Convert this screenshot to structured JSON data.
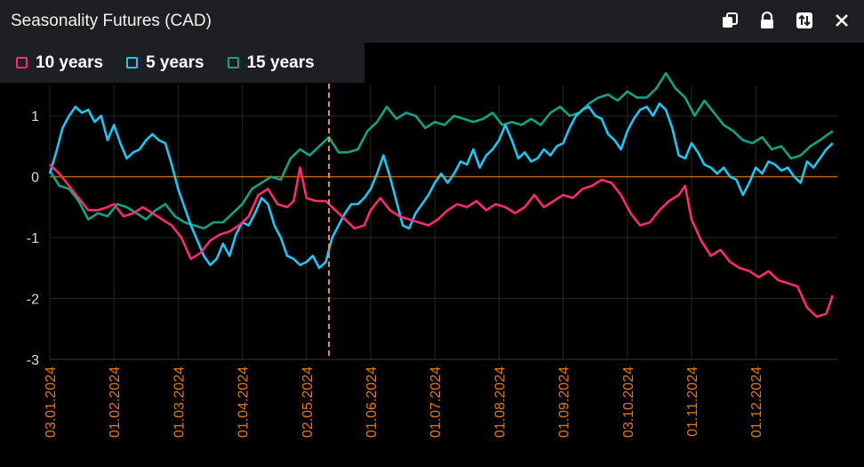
{
  "window": {
    "title": "Seasonality Futures (CAD)"
  },
  "icons": [
    "duplicate-icon",
    "lock-icon",
    "swap-icon",
    "close-icon"
  ],
  "colors": {
    "ten": "#ff2d6f",
    "five": "#1fc7f5",
    "fifteen": "#13a387",
    "zero": "#b8650a",
    "vline": "#f7931a",
    "xlabels": "#e07b12"
  },
  "chart_data": {
    "type": "line",
    "grid": true,
    "ylim": [
      -3,
      1.5
    ],
    "yticks": [
      1,
      0,
      -1,
      -2,
      -3
    ],
    "ytick_labels": [
      "1",
      "0",
      "-1",
      "-2",
      "-3"
    ],
    "x_ticks": [
      "03.01.2024",
      "01.02.2024",
      "01.03.2024",
      "01.04.2024",
      "02.05.2024",
      "01.06.2024",
      "01.07.2024",
      "01.08.2024",
      "01.09.2024",
      "03.10.2024",
      "01.11.2024",
      "01.12.2024"
    ],
    "x_tick_pos": [
      0,
      1,
      2,
      3,
      4,
      5,
      6,
      7,
      8,
      9,
      10,
      11
    ],
    "marker_x": 4.35,
    "series": [
      {
        "name": "10 years",
        "key": "ten",
        "points": [
          [
            0,
            0.2
          ],
          [
            0.15,
            0.05
          ],
          [
            0.3,
            -0.15
          ],
          [
            0.45,
            -0.35
          ],
          [
            0.6,
            -0.55
          ],
          [
            0.75,
            -0.55
          ],
          [
            0.9,
            -0.5
          ],
          [
            1.0,
            -0.45
          ],
          [
            1.15,
            -0.65
          ],
          [
            1.3,
            -0.6
          ],
          [
            1.45,
            -0.5
          ],
          [
            1.6,
            -0.6
          ],
          [
            1.75,
            -0.7
          ],
          [
            1.9,
            -0.8
          ],
          [
            2.05,
            -1.0
          ],
          [
            2.2,
            -1.35
          ],
          [
            2.35,
            -1.25
          ],
          [
            2.5,
            -1.05
          ],
          [
            2.65,
            -0.95
          ],
          [
            2.8,
            -0.9
          ],
          [
            2.95,
            -0.8
          ],
          [
            3.1,
            -0.65
          ],
          [
            3.25,
            -0.3
          ],
          [
            3.4,
            -0.2
          ],
          [
            3.55,
            -0.45
          ],
          [
            3.7,
            -0.5
          ],
          [
            3.8,
            -0.4
          ],
          [
            3.9,
            0.15
          ],
          [
            4.0,
            -0.35
          ],
          [
            4.15,
            -0.4
          ],
          [
            4.3,
            -0.4
          ],
          [
            4.45,
            -0.55
          ],
          [
            4.6,
            -0.7
          ],
          [
            4.75,
            -0.85
          ],
          [
            4.9,
            -0.8
          ],
          [
            5.0,
            -0.55
          ],
          [
            5.15,
            -0.35
          ],
          [
            5.3,
            -0.55
          ],
          [
            5.45,
            -0.65
          ],
          [
            5.6,
            -0.7
          ],
          [
            5.75,
            -0.75
          ],
          [
            5.9,
            -0.8
          ],
          [
            6.05,
            -0.7
          ],
          [
            6.2,
            -0.55
          ],
          [
            6.35,
            -0.45
          ],
          [
            6.5,
            -0.5
          ],
          [
            6.65,
            -0.4
          ],
          [
            6.8,
            -0.55
          ],
          [
            6.95,
            -0.45
          ],
          [
            7.1,
            -0.5
          ],
          [
            7.25,
            -0.6
          ],
          [
            7.4,
            -0.5
          ],
          [
            7.55,
            -0.3
          ],
          [
            7.7,
            -0.5
          ],
          [
            7.85,
            -0.4
          ],
          [
            8.0,
            -0.3
          ],
          [
            8.15,
            -0.35
          ],
          [
            8.3,
            -0.2
          ],
          [
            8.45,
            -0.15
          ],
          [
            8.6,
            -0.05
          ],
          [
            8.75,
            -0.1
          ],
          [
            8.9,
            -0.3
          ],
          [
            9.05,
            -0.6
          ],
          [
            9.2,
            -0.8
          ],
          [
            9.35,
            -0.75
          ],
          [
            9.5,
            -0.55
          ],
          [
            9.65,
            -0.4
          ],
          [
            9.8,
            -0.3
          ],
          [
            9.9,
            -0.15
          ],
          [
            10.0,
            -0.7
          ],
          [
            10.15,
            -1.05
          ],
          [
            10.3,
            -1.3
          ],
          [
            10.45,
            -1.2
          ],
          [
            10.6,
            -1.4
          ],
          [
            10.75,
            -1.5
          ],
          [
            10.9,
            -1.55
          ],
          [
            11.05,
            -1.65
          ],
          [
            11.2,
            -1.55
          ],
          [
            11.35,
            -1.7
          ],
          [
            11.5,
            -1.75
          ],
          [
            11.65,
            -1.8
          ],
          [
            11.8,
            -2.15
          ],
          [
            11.95,
            -2.3
          ],
          [
            12.1,
            -2.25
          ],
          [
            12.2,
            -1.95
          ]
        ]
      },
      {
        "name": "5 years",
        "key": "five",
        "points": [
          [
            0,
            0.05
          ],
          [
            0.1,
            0.4
          ],
          [
            0.2,
            0.8
          ],
          [
            0.3,
            1.0
          ],
          [
            0.4,
            1.15
          ],
          [
            0.5,
            1.05
          ],
          [
            0.6,
            1.1
          ],
          [
            0.7,
            0.9
          ],
          [
            0.8,
            1.0
          ],
          [
            0.9,
            0.6
          ],
          [
            1.0,
            0.85
          ],
          [
            1.1,
            0.55
          ],
          [
            1.2,
            0.3
          ],
          [
            1.3,
            0.4
          ],
          [
            1.4,
            0.45
          ],
          [
            1.5,
            0.6
          ],
          [
            1.6,
            0.7
          ],
          [
            1.7,
            0.6
          ],
          [
            1.8,
            0.55
          ],
          [
            1.9,
            0.2
          ],
          [
            2.0,
            -0.2
          ],
          [
            2.1,
            -0.5
          ],
          [
            2.2,
            -0.8
          ],
          [
            2.3,
            -1.05
          ],
          [
            2.4,
            -1.3
          ],
          [
            2.5,
            -1.45
          ],
          [
            2.6,
            -1.35
          ],
          [
            2.7,
            -1.1
          ],
          [
            2.8,
            -1.3
          ],
          [
            2.9,
            -0.95
          ],
          [
            3.0,
            -0.75
          ],
          [
            3.1,
            -0.8
          ],
          [
            3.2,
            -0.6
          ],
          [
            3.3,
            -0.35
          ],
          [
            3.4,
            -0.45
          ],
          [
            3.5,
            -0.8
          ],
          [
            3.6,
            -1.0
          ],
          [
            3.7,
            -1.3
          ],
          [
            3.8,
            -1.35
          ],
          [
            3.9,
            -1.45
          ],
          [
            4.0,
            -1.4
          ],
          [
            4.1,
            -1.3
          ],
          [
            4.2,
            -1.5
          ],
          [
            4.3,
            -1.4
          ],
          [
            4.4,
            -1.0
          ],
          [
            4.5,
            -0.8
          ],
          [
            4.6,
            -0.6
          ],
          [
            4.7,
            -0.45
          ],
          [
            4.8,
            -0.45
          ],
          [
            4.9,
            -0.35
          ],
          [
            5.0,
            -0.2
          ],
          [
            5.1,
            0.05
          ],
          [
            5.2,
            0.35
          ],
          [
            5.3,
            0.0
          ],
          [
            5.4,
            -0.4
          ],
          [
            5.5,
            -0.8
          ],
          [
            5.6,
            -0.85
          ],
          [
            5.7,
            -0.6
          ],
          [
            5.8,
            -0.45
          ],
          [
            5.9,
            -0.3
          ],
          [
            6.0,
            -0.1
          ],
          [
            6.1,
            0.05
          ],
          [
            6.2,
            -0.1
          ],
          [
            6.3,
            0.05
          ],
          [
            6.4,
            0.25
          ],
          [
            6.5,
            0.2
          ],
          [
            6.6,
            0.45
          ],
          [
            6.7,
            0.15
          ],
          [
            6.8,
            0.35
          ],
          [
            6.9,
            0.45
          ],
          [
            7.0,
            0.6
          ],
          [
            7.1,
            0.85
          ],
          [
            7.2,
            0.6
          ],
          [
            7.3,
            0.3
          ],
          [
            7.4,
            0.4
          ],
          [
            7.5,
            0.25
          ],
          [
            7.6,
            0.3
          ],
          [
            7.7,
            0.45
          ],
          [
            7.8,
            0.35
          ],
          [
            7.9,
            0.5
          ],
          [
            8.0,
            0.55
          ],
          [
            8.1,
            0.8
          ],
          [
            8.2,
            1.0
          ],
          [
            8.3,
            1.1
          ],
          [
            8.4,
            1.15
          ],
          [
            8.5,
            1.0
          ],
          [
            8.6,
            0.95
          ],
          [
            8.7,
            0.7
          ],
          [
            8.8,
            0.6
          ],
          [
            8.9,
            0.45
          ],
          [
            9.0,
            0.75
          ],
          [
            9.1,
            0.95
          ],
          [
            9.2,
            1.1
          ],
          [
            9.3,
            1.15
          ],
          [
            9.4,
            1.0
          ],
          [
            9.5,
            1.2
          ],
          [
            9.6,
            1.1
          ],
          [
            9.7,
            0.8
          ],
          [
            9.8,
            0.35
          ],
          [
            9.9,
            0.3
          ],
          [
            10.0,
            0.55
          ],
          [
            10.1,
            0.4
          ],
          [
            10.2,
            0.2
          ],
          [
            10.3,
            0.15
          ],
          [
            10.4,
            0.05
          ],
          [
            10.5,
            0.15
          ],
          [
            10.6,
            0.0
          ],
          [
            10.7,
            -0.05
          ],
          [
            10.8,
            -0.3
          ],
          [
            10.9,
            -0.1
          ],
          [
            11.0,
            0.15
          ],
          [
            11.1,
            0.05
          ],
          [
            11.2,
            0.25
          ],
          [
            11.3,
            0.2
          ],
          [
            11.4,
            0.1
          ],
          [
            11.5,
            0.15
          ],
          [
            11.6,
            0.0
          ],
          [
            11.7,
            -0.1
          ],
          [
            11.8,
            0.25
          ],
          [
            11.9,
            0.15
          ],
          [
            12.0,
            0.3
          ],
          [
            12.1,
            0.45
          ],
          [
            12.2,
            0.55
          ]
        ]
      },
      {
        "name": "15 years",
        "key": "fifteen",
        "points": [
          [
            0,
            0.1
          ],
          [
            0.15,
            -0.15
          ],
          [
            0.3,
            -0.2
          ],
          [
            0.45,
            -0.4
          ],
          [
            0.6,
            -0.7
          ],
          [
            0.75,
            -0.6
          ],
          [
            0.9,
            -0.65
          ],
          [
            1.05,
            -0.45
          ],
          [
            1.2,
            -0.5
          ],
          [
            1.35,
            -0.6
          ],
          [
            1.5,
            -0.7
          ],
          [
            1.65,
            -0.55
          ],
          [
            1.8,
            -0.45
          ],
          [
            1.95,
            -0.65
          ],
          [
            2.1,
            -0.75
          ],
          [
            2.25,
            -0.8
          ],
          [
            2.4,
            -0.85
          ],
          [
            2.55,
            -0.75
          ],
          [
            2.7,
            -0.75
          ],
          [
            2.85,
            -0.6
          ],
          [
            3.0,
            -0.45
          ],
          [
            3.15,
            -0.2
          ],
          [
            3.3,
            -0.1
          ],
          [
            3.45,
            0.0
          ],
          [
            3.6,
            -0.05
          ],
          [
            3.75,
            0.3
          ],
          [
            3.9,
            0.45
          ],
          [
            4.05,
            0.35
          ],
          [
            4.2,
            0.5
          ],
          [
            4.35,
            0.65
          ],
          [
            4.5,
            0.4
          ],
          [
            4.65,
            0.4
          ],
          [
            4.8,
            0.45
          ],
          [
            4.95,
            0.75
          ],
          [
            5.1,
            0.9
          ],
          [
            5.25,
            1.15
          ],
          [
            5.4,
            0.95
          ],
          [
            5.55,
            1.05
          ],
          [
            5.7,
            1.0
          ],
          [
            5.85,
            0.8
          ],
          [
            6.0,
            0.9
          ],
          [
            6.15,
            0.85
          ],
          [
            6.3,
            1.0
          ],
          [
            6.45,
            0.95
          ],
          [
            6.6,
            0.9
          ],
          [
            6.75,
            0.95
          ],
          [
            6.9,
            1.05
          ],
          [
            7.05,
            0.85
          ],
          [
            7.2,
            0.9
          ],
          [
            7.35,
            0.85
          ],
          [
            7.5,
            0.95
          ],
          [
            7.65,
            0.85
          ],
          [
            7.8,
            1.05
          ],
          [
            7.95,
            1.15
          ],
          [
            8.1,
            1.0
          ],
          [
            8.25,
            1.05
          ],
          [
            8.4,
            1.2
          ],
          [
            8.55,
            1.3
          ],
          [
            8.7,
            1.35
          ],
          [
            8.85,
            1.25
          ],
          [
            9.0,
            1.4
          ],
          [
            9.15,
            1.3
          ],
          [
            9.3,
            1.3
          ],
          [
            9.45,
            1.45
          ],
          [
            9.6,
            1.7
          ],
          [
            9.75,
            1.45
          ],
          [
            9.9,
            1.3
          ],
          [
            10.05,
            1.0
          ],
          [
            10.2,
            1.25
          ],
          [
            10.35,
            1.05
          ],
          [
            10.5,
            0.85
          ],
          [
            10.65,
            0.75
          ],
          [
            10.8,
            0.6
          ],
          [
            10.95,
            0.55
          ],
          [
            11.1,
            0.65
          ],
          [
            11.25,
            0.45
          ],
          [
            11.4,
            0.5
          ],
          [
            11.55,
            0.3
          ],
          [
            11.7,
            0.35
          ],
          [
            11.85,
            0.5
          ],
          [
            12.0,
            0.6
          ],
          [
            12.2,
            0.75
          ]
        ]
      }
    ]
  }
}
